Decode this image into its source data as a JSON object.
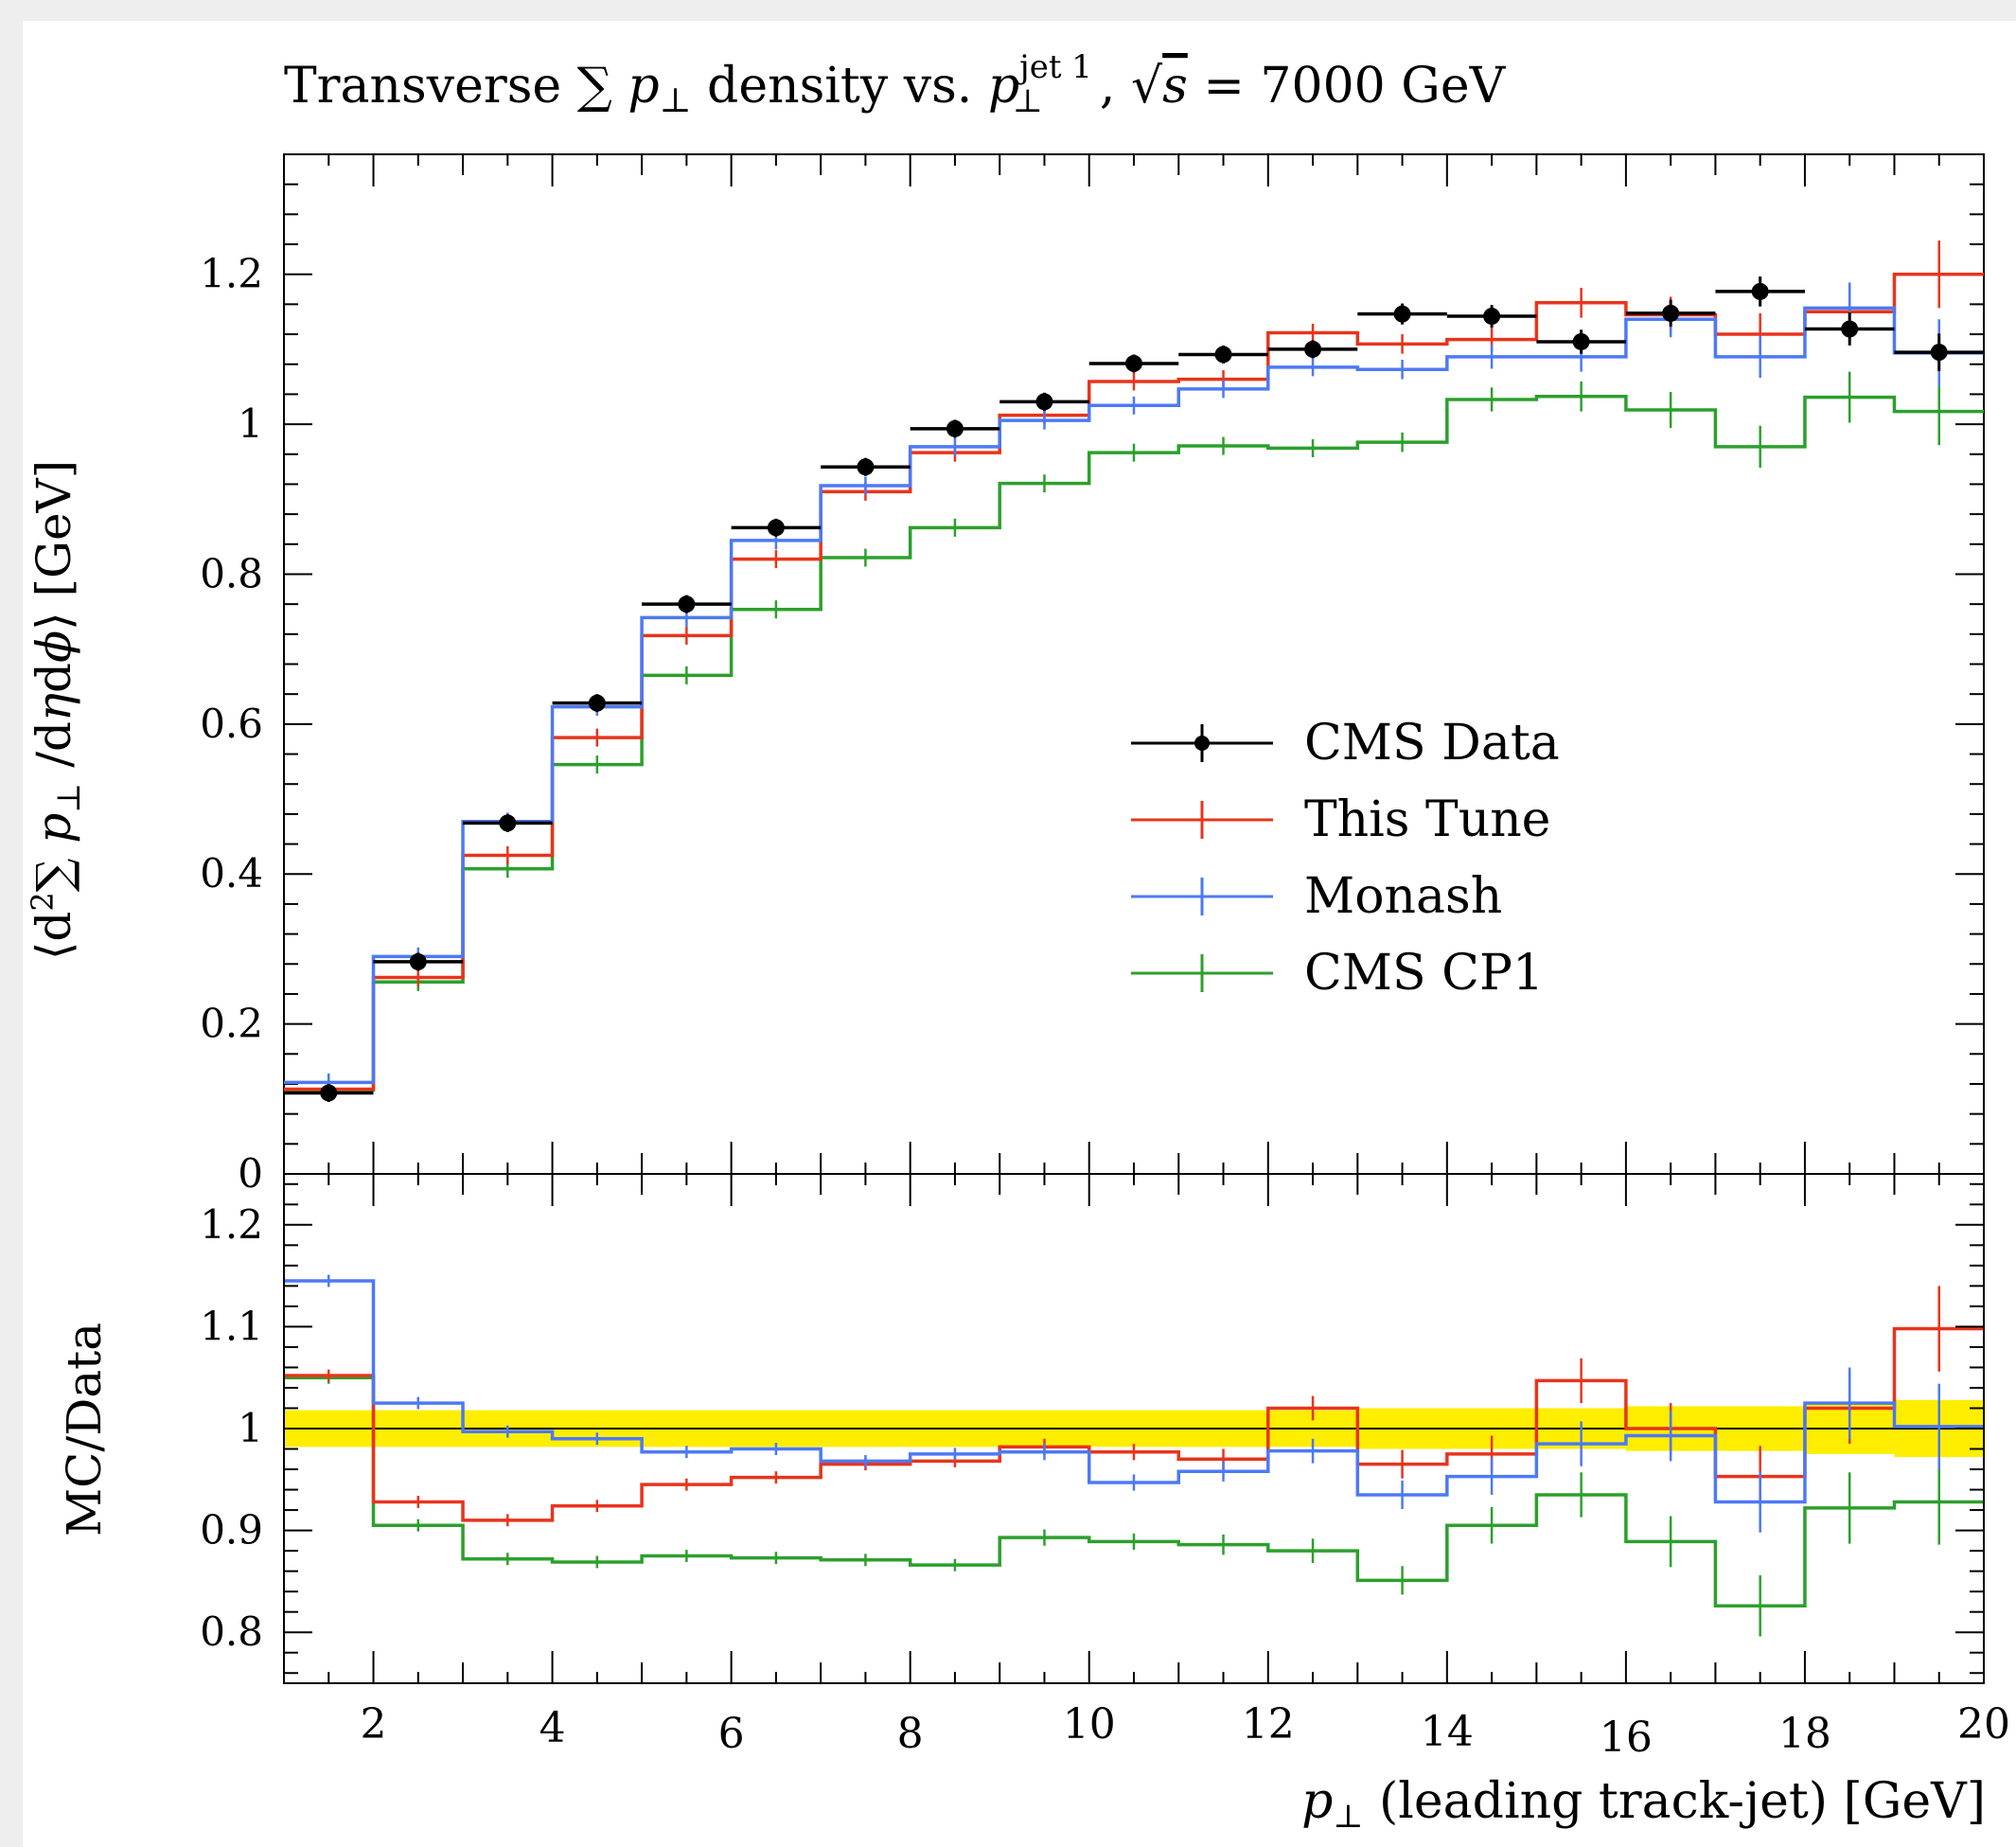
{
  "chart_data": [
    {
      "type": "step-histogram",
      "title": "Transverse ∑ p⊥ density vs. p⊥ jet 1, √s = 7000 GeV",
      "ylabel": "⟨d²∑ p⊥ /dηdϕ⟩ [GeV]",
      "xlim": [
        1,
        20
      ],
      "ylim": [
        0,
        1.36
      ],
      "yticks": [
        {
          "v": 0,
          "label": "0"
        },
        {
          "v": 0.2,
          "label": "0.2"
        },
        {
          "v": 0.4,
          "label": "0.4"
        },
        {
          "v": 0.6,
          "label": "0.6"
        },
        {
          "v": 0.8,
          "label": "0.8"
        },
        {
          "v": 1.0,
          "label": "1"
        },
        {
          "v": 1.2,
          "label": "1.2"
        }
      ],
      "bin_edges": [
        1,
        2,
        3,
        4,
        5,
        6,
        7,
        8,
        9,
        10,
        11,
        12,
        13,
        14,
        15,
        16,
        17,
        18,
        19,
        20
      ],
      "legend_position": "center-right",
      "series": [
        {
          "name": "CMS Data",
          "color": "#000000",
          "style": "points",
          "values": [
            0.108,
            0.283,
            0.468,
            0.628,
            0.76,
            0.862,
            0.943,
            0.994,
            1.03,
            1.081,
            1.093,
            1.1,
            1.147,
            1.144,
            1.11,
            1.148,
            1.177,
            1.127,
            1.096
          ],
          "errors": [
            0.004,
            0.005,
            0.006,
            0.006,
            0.007,
            0.007,
            0.008,
            0.008,
            0.009,
            0.01,
            0.011,
            0.012,
            0.014,
            0.015,
            0.016,
            0.018,
            0.02,
            0.022,
            0.025
          ]
        },
        {
          "name": "This Tune",
          "color": "#e8341c",
          "style": "step",
          "values": [
            0.113,
            0.262,
            0.425,
            0.582,
            0.718,
            0.82,
            0.91,
            0.962,
            1.012,
            1.057,
            1.06,
            1.122,
            1.107,
            1.113,
            1.162,
            1.146,
            1.12,
            1.15,
            1.2
          ],
          "errors": [
            0.002,
            0.003,
            0.003,
            0.004,
            0.004,
            0.005,
            0.005,
            0.006,
            0.007,
            0.008,
            0.009,
            0.011,
            0.013,
            0.016,
            0.02,
            0.024,
            0.028,
            0.034,
            0.045
          ]
        },
        {
          "name": "Monash",
          "color": "#4d79f5",
          "style": "step",
          "values": [
            0.122,
            0.29,
            0.47,
            0.623,
            0.742,
            0.845,
            0.918,
            0.97,
            1.005,
            1.025,
            1.047,
            1.076,
            1.073,
            1.09,
            1.09,
            1.14,
            1.09,
            1.155,
            1.095
          ],
          "errors": [
            0.002,
            0.003,
            0.003,
            0.004,
            0.004,
            0.005,
            0.005,
            0.006,
            0.007,
            0.008,
            0.009,
            0.011,
            0.013,
            0.016,
            0.02,
            0.024,
            0.028,
            0.034,
            0.045
          ]
        },
        {
          "name": "CMS CP1",
          "color": "#2ca02c",
          "style": "step",
          "values": [
            0.112,
            0.256,
            0.407,
            0.546,
            0.665,
            0.753,
            0.822,
            0.862,
            0.921,
            0.962,
            0.971,
            0.968,
            0.976,
            1.033,
            1.037,
            1.019,
            0.97,
            1.036,
            1.017
          ],
          "errors": [
            0.002,
            0.003,
            0.003,
            0.004,
            0.004,
            0.005,
            0.005,
            0.006,
            0.007,
            0.008,
            0.009,
            0.011,
            0.013,
            0.016,
            0.02,
            0.024,
            0.028,
            0.034,
            0.045
          ]
        }
      ]
    },
    {
      "type": "ratio-step-histogram",
      "ylabel": "MC/Data",
      "xlabel": "p⊥ (leading track-jet) [GeV]",
      "xlim": [
        1,
        20
      ],
      "ylim": [
        0.75,
        1.25
      ],
      "xticks": [
        {
          "v": 2,
          "label": "2"
        },
        {
          "v": 4,
          "label": "4"
        },
        {
          "v": 6,
          "label": "6"
        },
        {
          "v": 8,
          "label": "8"
        },
        {
          "v": 10,
          "label": "10"
        },
        {
          "v": 12,
          "label": "12"
        },
        {
          "v": 14,
          "label": "14"
        },
        {
          "v": 16,
          "label": "16"
        },
        {
          "v": 18,
          "label": "18"
        },
        {
          "v": 20,
          "label": "20"
        }
      ],
      "yticks": [
        {
          "v": 0.8,
          "label": "0.8"
        },
        {
          "v": 0.9,
          "label": "0.9"
        },
        {
          "v": 1.0,
          "label": "1"
        },
        {
          "v": 1.1,
          "label": "1.1"
        },
        {
          "v": 1.2,
          "label": "1.2"
        }
      ],
      "bin_edges": [
        1,
        2,
        3,
        4,
        5,
        6,
        7,
        8,
        9,
        10,
        11,
        12,
        13,
        14,
        15,
        16,
        17,
        18,
        19,
        20
      ],
      "band": {
        "color": "#ffee00",
        "halfwidth": [
          0.018,
          0.018,
          0.018,
          0.018,
          0.018,
          0.018,
          0.018,
          0.018,
          0.018,
          0.018,
          0.018,
          0.018,
          0.02,
          0.02,
          0.02,
          0.022,
          0.022,
          0.025,
          0.028
        ]
      },
      "series": [
        {
          "name": "This Tune",
          "color": "#e8341c",
          "values": [
            1.052,
            0.928,
            0.91,
            0.924,
            0.945,
            0.952,
            0.965,
            0.968,
            0.982,
            0.977,
            0.97,
            1.02,
            0.965,
            0.975,
            1.047,
            1.0,
            0.953,
            1.02,
            1.098
          ],
          "errors": [
            0.004,
            0.004,
            0.004,
            0.004,
            0.004,
            0.005,
            0.005,
            0.006,
            0.008,
            0.008,
            0.01,
            0.012,
            0.014,
            0.018,
            0.022,
            0.025,
            0.03,
            0.035,
            0.042
          ]
        },
        {
          "name": "Monash",
          "color": "#4d79f5",
          "values": [
            1.145,
            1.025,
            0.997,
            0.99,
            0.977,
            0.98,
            0.968,
            0.975,
            0.977,
            0.947,
            0.958,
            0.978,
            0.935,
            0.953,
            0.985,
            0.993,
            0.928,
            1.025,
            1.002
          ],
          "errors": [
            0.004,
            0.004,
            0.004,
            0.004,
            0.004,
            0.005,
            0.005,
            0.006,
            0.008,
            0.008,
            0.01,
            0.012,
            0.014,
            0.018,
            0.022,
            0.025,
            0.03,
            0.035,
            0.042
          ]
        },
        {
          "name": "CMS CP1",
          "color": "#2ca02c",
          "values": [
            1.05,
            0.905,
            0.872,
            0.869,
            0.875,
            0.873,
            0.871,
            0.866,
            0.893,
            0.889,
            0.886,
            0.88,
            0.851,
            0.905,
            0.935,
            0.889,
            0.826,
            0.922,
            0.928
          ],
          "errors": [
            0.004,
            0.004,
            0.004,
            0.004,
            0.004,
            0.005,
            0.005,
            0.006,
            0.008,
            0.008,
            0.01,
            0.012,
            0.014,
            0.018,
            0.022,
            0.025,
            0.03,
            0.035,
            0.042
          ]
        }
      ]
    }
  ]
}
